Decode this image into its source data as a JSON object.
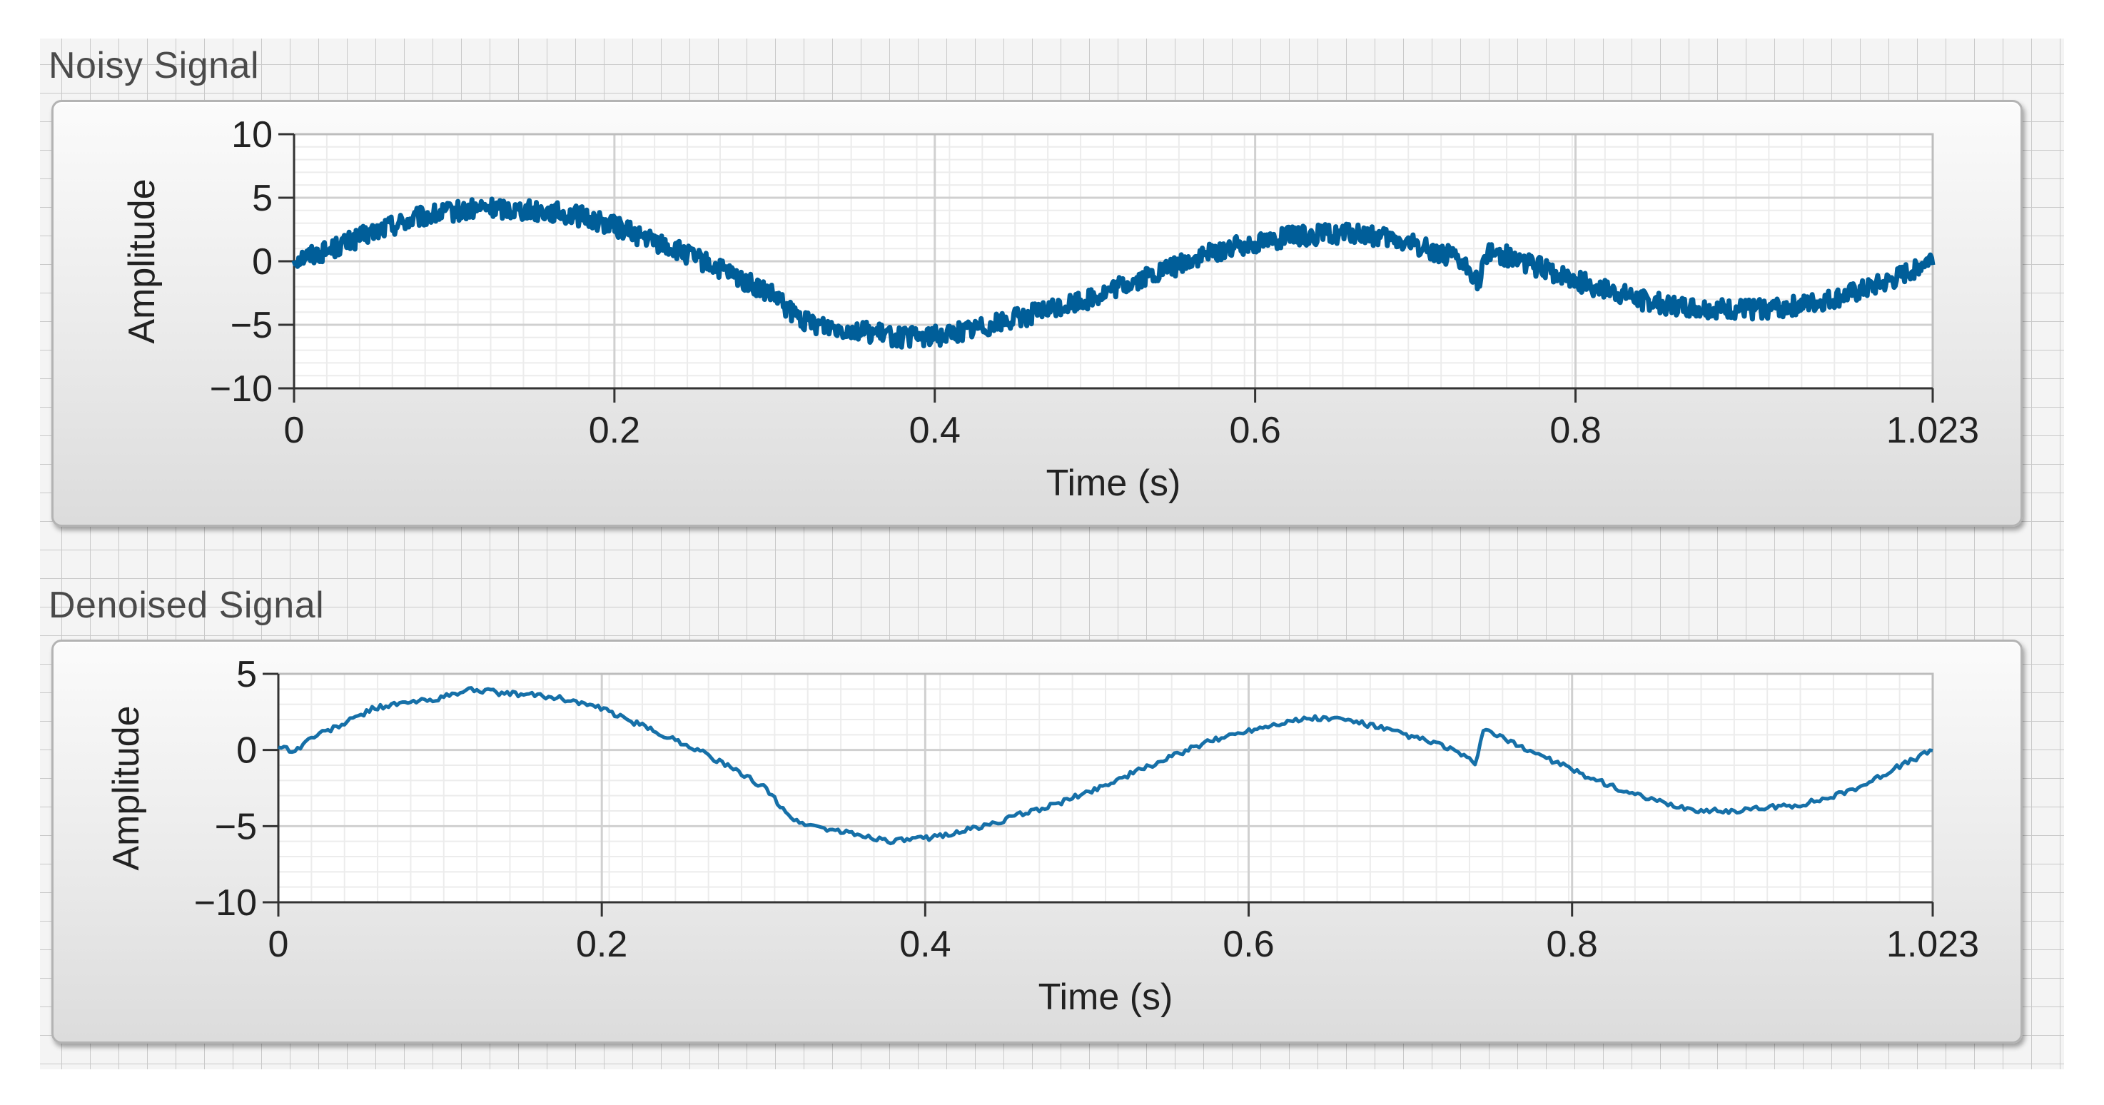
{
  "graphs": [
    {
      "label": "Noisy Signal",
      "chart_data": {
        "type": "line",
        "title": "Noisy Signal",
        "xlabel": "Time (s)",
        "ylabel": "Amplitude",
        "xlim": [
          0,
          1.023
        ],
        "ylim": [
          -10,
          10
        ],
        "x_ticks": [
          "0",
          "0.2",
          "0.4",
          "0.6",
          "0.8",
          "1.023"
        ],
        "x_tick_values": [
          0,
          0.2,
          0.4,
          0.6,
          0.8,
          1.023
        ],
        "y_ticks": [
          "10",
          "5",
          "0",
          "−5",
          "−10"
        ],
        "y_tick_values": [
          10,
          5,
          0,
          -5,
          -10
        ],
        "grid": true,
        "series_color": "#005e99",
        "series": [
          {
            "x": [
              0,
              0.02,
              0.04,
              0.06,
              0.08,
              0.1,
              0.12,
              0.14,
              0.16,
              0.18,
              0.2,
              0.22,
              0.24,
              0.26,
              0.28,
              0.3,
              0.31,
              0.32,
              0.34,
              0.36,
              0.38,
              0.4,
              0.42,
              0.44,
              0.46,
              0.48,
              0.5,
              0.52,
              0.54,
              0.56,
              0.58,
              0.6,
              0.62,
              0.64,
              0.66,
              0.68,
              0.7,
              0.72,
              0.735,
              0.74,
              0.745,
              0.76,
              0.78,
              0.8,
              0.82,
              0.84,
              0.86,
              0.88,
              0.9,
              0.92,
              0.94,
              0.96,
              0.98,
              1.0,
              1.023
            ],
            "y": [
              0.2,
              0.8,
              1.8,
              2.8,
              3.5,
              3.9,
              4.2,
              4.1,
              3.9,
              3.5,
              2.8,
              1.8,
              0.8,
              -0.3,
              -1.5,
              -2.8,
              -4.0,
              -4.8,
              -5.2,
              -5.6,
              -6.0,
              -5.9,
              -5.4,
              -4.8,
              -4.2,
              -3.5,
              -2.8,
              -1.8,
              -0.9,
              0.1,
              0.9,
              1.5,
              1.9,
              2.1,
              2.2,
              1.8,
              1.3,
              0.5,
              -0.8,
              -1.8,
              0.9,
              0.3,
              -0.6,
              -1.5,
              -2.3,
              -3.0,
              -3.5,
              -3.7,
              -3.8,
              -3.7,
              -3.5,
              -3.0,
              -2.3,
              -1.4,
              0.3
            ]
          }
        ]
      }
    },
    {
      "label": "Denoised Signal",
      "chart_data": {
        "type": "line",
        "title": "Denoised Signal",
        "xlabel": "Time (s)",
        "ylabel": "Amplitude",
        "xlim": [
          0,
          1.023
        ],
        "ylim": [
          -10,
          5
        ],
        "x_ticks": [
          "0",
          "0.2",
          "0.4",
          "0.6",
          "0.8",
          "1.023"
        ],
        "x_tick_values": [
          0,
          0.2,
          0.4,
          0.6,
          0.8,
          1.023
        ],
        "y_ticks": [
          "5",
          "0",
          "−5",
          "−10"
        ],
        "y_tick_values": [
          5,
          0,
          -5,
          -10
        ],
        "grid": true,
        "series_color": "#1670a8",
        "series": [
          {
            "x": [
              0,
              0.01,
              0.02,
              0.04,
              0.06,
              0.08,
              0.1,
              0.12,
              0.14,
              0.16,
              0.18,
              0.2,
              0.22,
              0.24,
              0.26,
              0.28,
              0.3,
              0.31,
              0.32,
              0.34,
              0.36,
              0.38,
              0.4,
              0.42,
              0.44,
              0.46,
              0.48,
              0.5,
              0.52,
              0.54,
              0.56,
              0.58,
              0.6,
              0.62,
              0.64,
              0.66,
              0.68,
              0.7,
              0.72,
              0.735,
              0.74,
              0.745,
              0.76,
              0.78,
              0.8,
              0.82,
              0.84,
              0.86,
              0.88,
              0.9,
              0.92,
              0.94,
              0.96,
              0.98,
              1.0,
              1.023
            ],
            "y": [
              0.3,
              -0.1,
              0.8,
              1.7,
              2.8,
              3.1,
              3.4,
              4.0,
              3.7,
              3.6,
              3.3,
              2.7,
              1.8,
              0.9,
              0.0,
              -1.2,
              -2.4,
              -3.6,
              -4.7,
              -5.2,
              -5.6,
              -6.0,
              -5.8,
              -5.4,
              -4.9,
              -4.2,
              -3.6,
              -2.8,
              -1.9,
              -1.0,
              -0.1,
              0.7,
              1.3,
              1.8,
              2.1,
              2.0,
              1.5,
              0.9,
              0.3,
              -0.5,
              -1.1,
              1.4,
              0.6,
              -0.3,
              -1.3,
              -2.2,
              -3.0,
              -3.6,
              -4.0,
              -4.0,
              -3.8,
              -3.6,
              -3.1,
              -2.3,
              -1.2,
              0.0
            ]
          }
        ]
      }
    }
  ]
}
